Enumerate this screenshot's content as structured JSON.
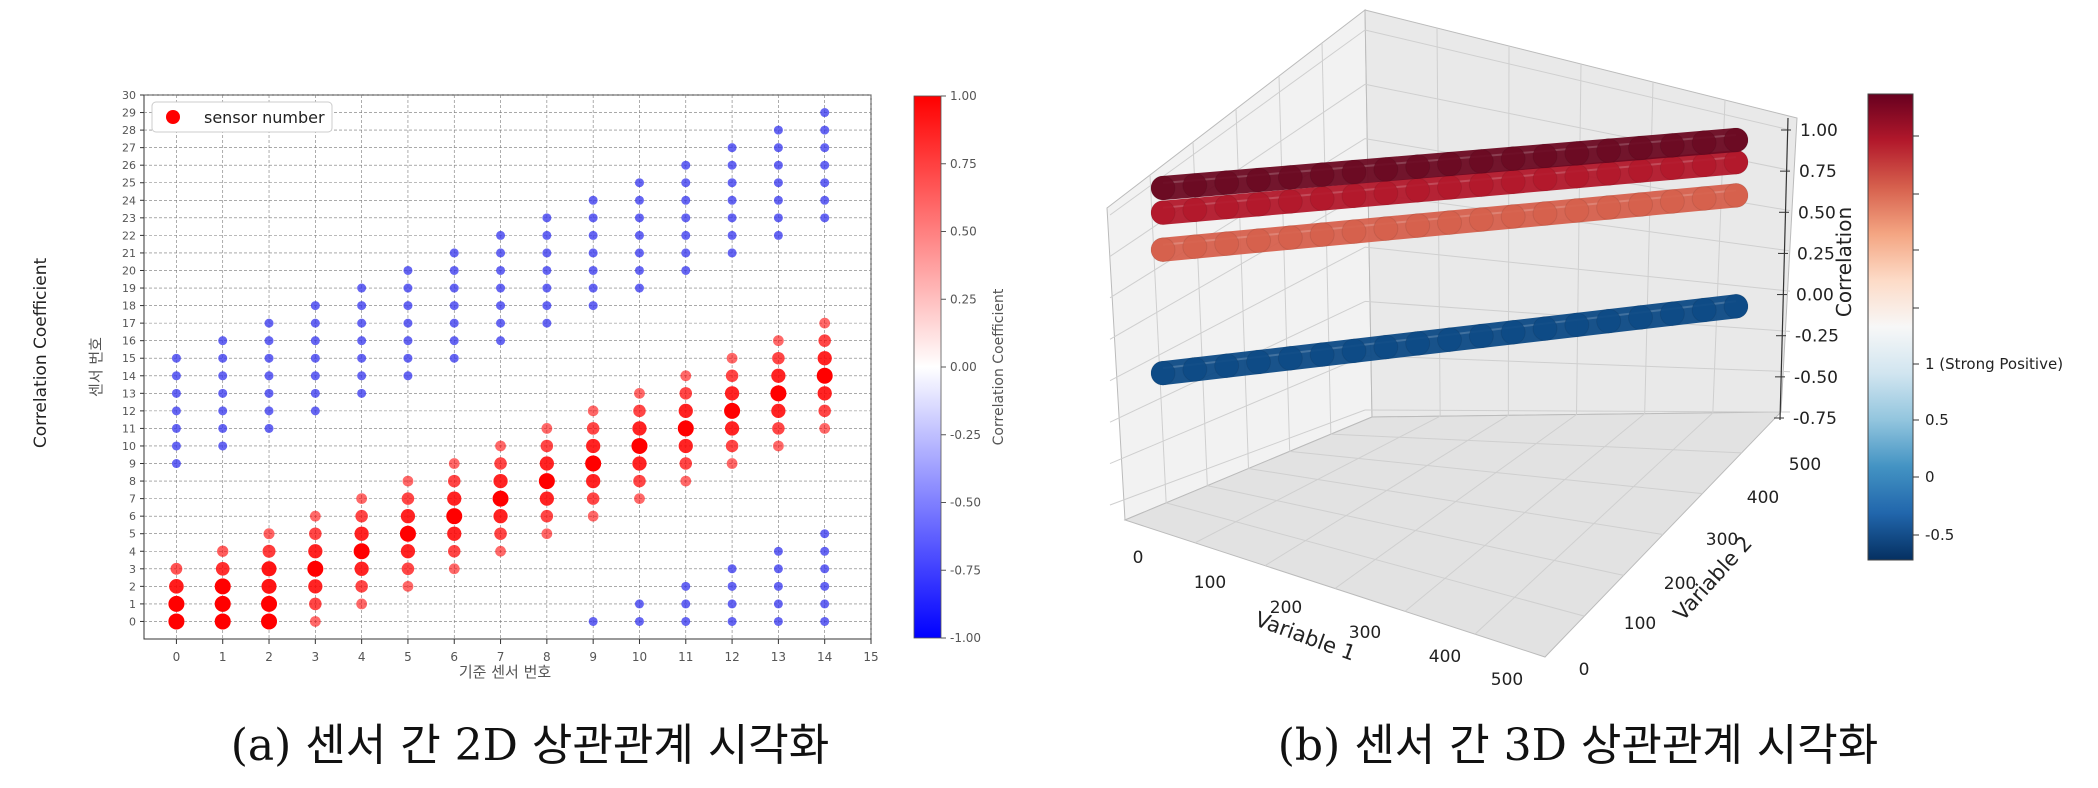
{
  "figure": {
    "caption_a": "(a) 센서 간 2D 상관관계 시각화",
    "caption_b": "(b) 센서 간 3D 상관관계 시각화"
  },
  "chart_data": [
    {
      "type": "scatter",
      "outer_ylabel": "Correlation Coefficient",
      "xlabel": "기준 센서 번호",
      "ylabel": "센서 번호",
      "xlim": [
        -0.7,
        15
      ],
      "ylim": [
        -1,
        30
      ],
      "xticks": [
        0,
        1,
        2,
        3,
        4,
        5,
        6,
        7,
        8,
        9,
        10,
        11,
        12,
        13,
        14,
        15
      ],
      "yticks": [
        0,
        1,
        2,
        3,
        4,
        5,
        6,
        7,
        8,
        9,
        10,
        11,
        12,
        13,
        14,
        15,
        16,
        17,
        18,
        19,
        20,
        21,
        22,
        23,
        24,
        25,
        26,
        27,
        28,
        29,
        30
      ],
      "grid": true,
      "legend": {
        "position": "top-left",
        "label": "sensor number"
      },
      "colorbar": {
        "label": "Correlation Coefficient",
        "range": [
          -1.0,
          1.0
        ],
        "ticks": [
          "1.00",
          "0.75",
          "0.50",
          "0.25",
          "0.00",
          "-0.25",
          "-0.50",
          "-0.75",
          "-1.00"
        ]
      },
      "colors": {
        "positive": "#ff0000",
        "negative": "#3333ee",
        "neutral": "#ffffff"
      },
      "columns": [
        {
          "x": 0,
          "positive": [
            0,
            1,
            2,
            3
          ],
          "negative": [
            9,
            10,
            11,
            12,
            13,
            14,
            15
          ]
        },
        {
          "x": 1,
          "positive": [
            0,
            1,
            2,
            3,
            4
          ],
          "negative": [
            10,
            11,
            12,
            13,
            14,
            15,
            16
          ]
        },
        {
          "x": 2,
          "positive": [
            0,
            1,
            2,
            3,
            4,
            5
          ],
          "negative": [
            11,
            12,
            13,
            14,
            15,
            16,
            17
          ]
        },
        {
          "x": 3,
          "positive": [
            0,
            1,
            2,
            3,
            4,
            5,
            6
          ],
          "negative": [
            12,
            13,
            14,
            15,
            16,
            17,
            18
          ]
        },
        {
          "x": 4,
          "positive": [
            1,
            2,
            3,
            4,
            5,
            6,
            7
          ],
          "negative": [
            13,
            14,
            15,
            16,
            17,
            18,
            19
          ]
        },
        {
          "x": 5,
          "positive": [
            2,
            3,
            4,
            5,
            6,
            7,
            8
          ],
          "negative": [
            14,
            15,
            16,
            17,
            18,
            19,
            20
          ]
        },
        {
          "x": 6,
          "positive": [
            3,
            4,
            5,
            6,
            7,
            8,
            9
          ],
          "negative": [
            15,
            16,
            17,
            18,
            19,
            20,
            21
          ]
        },
        {
          "x": 7,
          "positive": [
            4,
            5,
            6,
            7,
            8,
            9,
            10
          ],
          "negative": [
            16,
            17,
            18,
            19,
            20,
            21,
            22
          ]
        },
        {
          "x": 8,
          "positive": [
            5,
            6,
            7,
            8,
            9,
            10,
            11
          ],
          "negative": [
            17,
            18,
            19,
            20,
            21,
            22,
            23
          ]
        },
        {
          "x": 9,
          "positive": [
            6,
            7,
            8,
            9,
            10,
            11,
            12
          ],
          "negative": [
            0,
            18,
            19,
            20,
            21,
            22,
            23,
            24
          ]
        },
        {
          "x": 10,
          "positive": [
            7,
            8,
            9,
            10,
            11,
            12,
            13
          ],
          "negative": [
            0,
            1,
            19,
            20,
            21,
            22,
            23,
            24,
            25
          ]
        },
        {
          "x": 11,
          "positive": [
            8,
            9,
            10,
            11,
            12,
            13,
            14
          ],
          "negative": [
            0,
            1,
            2,
            20,
            21,
            22,
            23,
            24,
            25,
            26
          ]
        },
        {
          "x": 12,
          "positive": [
            9,
            10,
            11,
            12,
            13,
            14,
            15
          ],
          "negative": [
            0,
            1,
            2,
            3,
            21,
            22,
            23,
            24,
            25,
            26,
            27
          ]
        },
        {
          "x": 13,
          "positive": [
            10,
            11,
            12,
            13,
            14,
            15,
            16
          ],
          "negative": [
            0,
            1,
            2,
            3,
            4,
            22,
            23,
            24,
            25,
            26,
            27,
            28
          ]
        },
        {
          "x": 14,
          "positive": [
            11,
            12,
            13,
            14,
            15,
            16,
            17
          ],
          "negative": [
            0,
            1,
            2,
            3,
            4,
            5,
            23,
            24,
            25,
            26,
            27,
            28,
            29
          ]
        }
      ]
    },
    {
      "type": "scatter3d",
      "xlabel": "Variable 1",
      "ylabel": "Variable 2",
      "zlabel": "Correlation",
      "xticks": [
        "0",
        "100",
        "200",
        "300",
        "400",
        "500"
      ],
      "yticks": [
        "0",
        "100",
        "200",
        "300",
        "400",
        "500"
      ],
      "zticks": [
        "1.00",
        "0.75",
        "0.50",
        "0.25",
        "0.00",
        "-0.25",
        "-0.50",
        "-0.75"
      ],
      "xlim": [
        0,
        500
      ],
      "ylim": [
        0,
        500
      ],
      "zlim": [
        -0.75,
        1.0
      ],
      "colorbar": {
        "ticks": [
          "1 (Strong Positive)",
          "0.5",
          "0",
          "-0.5"
        ],
        "colors": [
          "#67001f",
          "#b2182b",
          "#d6604d",
          "#f4a582",
          "#fddbc7",
          "#f7f7f7",
          "#d1e5f0",
          "#92c5de",
          "#4393c3",
          "#2166ac",
          "#053061"
        ]
      },
      "series": [
        {
          "color": "#6b0a22",
          "points": [
            [
              0,
              0,
              1.0
            ],
            [
              500,
              0,
              1.0
            ]
          ]
        },
        {
          "color": "#b2182b",
          "points": [
            [
              0,
              0,
              0.8
            ],
            [
              500,
              0,
              0.8
            ]
          ]
        },
        {
          "color": "#d6604d",
          "points": [
            [
              0,
              0,
              0.5
            ],
            [
              500,
              0,
              0.5
            ]
          ]
        },
        {
          "color": "#0d4a85",
          "points": [
            [
              0,
              0,
              -0.5
            ],
            [
              500,
              0,
              -0.5
            ]
          ]
        }
      ]
    }
  ]
}
